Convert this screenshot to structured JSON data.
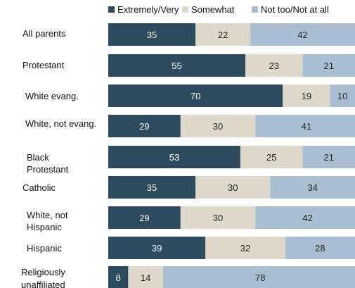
{
  "chart_data": {
    "type": "bar",
    "orientation": "horizontal",
    "stacked": true,
    "title": "",
    "xlabel": "",
    "ylabel": "",
    "xlim": [
      0,
      100
    ],
    "grid": false,
    "legend": "top",
    "categories": [
      [
        "All parents"
      ],
      [
        "Protestant"
      ],
      [
        "White evang."
      ],
      [
        "White, not evang."
      ],
      [
        "Black",
        "Protestant"
      ],
      [
        "Catholic"
      ],
      [
        "White, not",
        "Hispanic"
      ],
      [
        "Hispanic"
      ],
      [
        "Religiously",
        "unaffiliated"
      ]
    ],
    "series": [
      {
        "name": "Extremely/Very",
        "color": "#2e4a5f",
        "label_color": "#ffffff",
        "values": [
          35,
          55,
          70,
          29,
          53,
          35,
          29,
          39,
          8
        ]
      },
      {
        "name": "Somewhat",
        "color": "#ddd8c9",
        "label_color": "#222222",
        "values": [
          22,
          23,
          19,
          30,
          25,
          30,
          30,
          32,
          14
        ]
      },
      {
        "name": "Not too/Not at all",
        "color": "#a9bfd1",
        "label_color": "#222222",
        "values": [
          42,
          21,
          10,
          41,
          21,
          34,
          42,
          28,
          78
        ]
      }
    ]
  }
}
